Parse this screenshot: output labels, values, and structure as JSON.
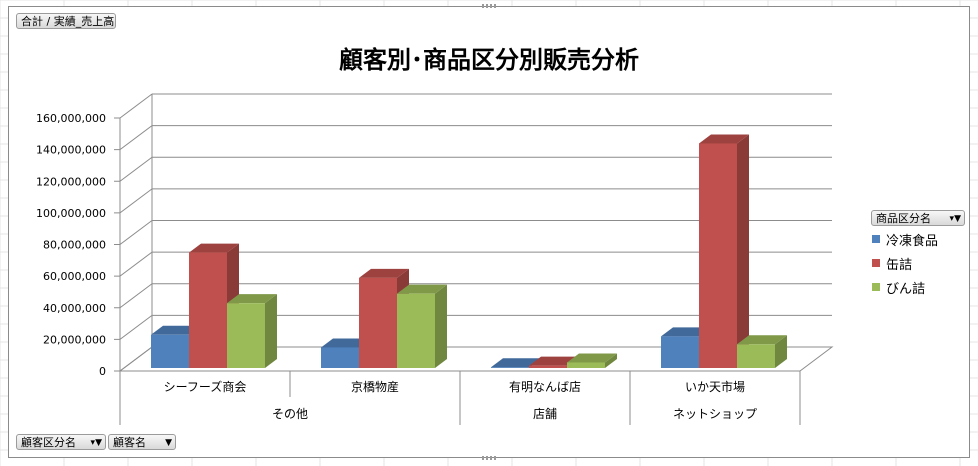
{
  "field_buttons": {
    "value_field": "合計 / 実績_売上高",
    "legend_field": "商品区分名",
    "row_field_1": "顧客区分名",
    "row_field_2": "顧客名"
  },
  "chart_data": {
    "type": "bar",
    "title": "顧客別･商品区分別販売分析",
    "xlabel": "",
    "ylabel": "",
    "ylim": [
      0,
      160000000
    ],
    "yticks": [
      "0",
      "20,000,000",
      "40,000,000",
      "60,000,000",
      "80,000,000",
      "100,000,000",
      "120,000,000",
      "140,000,000",
      "160,000,000"
    ],
    "categories": [
      "シーフーズ商会",
      "京橋物産",
      "有明なんば店",
      "いか天市場"
    ],
    "groups": [
      {
        "label": "その他",
        "members": [
          "シーフーズ商会",
          "京橋物産"
        ]
      },
      {
        "label": "店舗",
        "members": [
          "有明なんば店"
        ]
      },
      {
        "label": "ネットショップ",
        "members": [
          "いか天市場"
        ]
      }
    ],
    "series": [
      {
        "name": "冷凍食品",
        "color": "#4f81bd",
        "values": [
          21000000,
          13000000,
          500000,
          20000000
        ]
      },
      {
        "name": "缶詰",
        "color": "#c0504d",
        "values": [
          73000000,
          57000000,
          1500000,
          142000000
        ]
      },
      {
        "name": "びん詰",
        "color": "#9bbb59",
        "values": [
          41000000,
          47000000,
          3500000,
          15000000
        ]
      }
    ],
    "grid": true,
    "legend_position": "right"
  }
}
